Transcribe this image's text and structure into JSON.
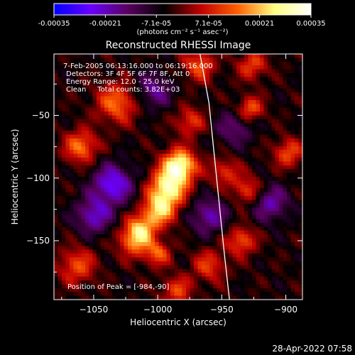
{
  "chart_data": {
    "type": "heatmap",
    "title": "Reconstructed RHESSI Image",
    "colorbar": {
      "min": -0.00035,
      "max": 0.00035,
      "tick_values": [
        -0.00035,
        -0.00021,
        -7.1e-05,
        7.1e-05,
        0.00021,
        0.00035
      ],
      "tick_labels": [
        "-0.00035",
        "-0.00021",
        "-7.1e-05",
        "7.1e-05",
        "0.00021",
        "0.00035"
      ],
      "unit_label": "(photons cm⁻² s⁻¹ asec⁻²)",
      "colors": [
        "#0000ff",
        "#6a00ff",
        "#5a0060",
        "#000000",
        "#c00000",
        "#ff6000",
        "#ffff80",
        "#ffffff"
      ]
    },
    "xlabel": "Heliocentric X (arcsec)",
    "ylabel": "Heliocentric Y (arcsec)",
    "xlim": [
      -1081,
      -887
    ],
    "ylim": [
      -197,
      -1
    ],
    "x_ticks": [
      -1050,
      -1000,
      -950,
      -900
    ],
    "x_tick_labels": [
      "−1050",
      "−1000",
      "−950",
      "−900"
    ],
    "y_ticks": [
      -50,
      -100,
      -150
    ],
    "y_tick_labels": [
      "−50",
      "−100",
      "−150"
    ],
    "info_lines": [
      "7-Feb-2005 06:13:16.000 to 06:19:16.000",
      "Detectors: 3F 4F 5F 6F 7F 8F, Att 0",
      "Energy Range: 12.0 - 25.0 keV",
      "Clean     Total counts: 3.82E+03"
    ],
    "peak_label": "Position of Peak = [-984,-90]",
    "peak_position": [
      -984,
      -90
    ],
    "limb_points": [
      [
        -967,
        -1
      ],
      [
        -960,
        -40
      ],
      [
        -956,
        -80
      ],
      [
        -952,
        -120
      ],
      [
        -948,
        -160
      ],
      [
        -944,
        -197
      ]
    ],
    "sources": [
      {
        "x": -983,
        "y": -90,
        "amp": 0.00034,
        "r": 9
      },
      {
        "x": -992,
        "y": -108,
        "amp": 0.0003,
        "r": 10
      },
      {
        "x": -999,
        "y": -126,
        "amp": 0.00024,
        "r": 9
      },
      {
        "x": -1013,
        "y": -140,
        "amp": 0.00018,
        "r": 8
      },
      {
        "x": -1060,
        "y": -75,
        "amp": 0.0002,
        "r": 9
      },
      {
        "x": -1063,
        "y": -170,
        "amp": 0.00016,
        "r": 10
      },
      {
        "x": -1032,
        "y": -40,
        "amp": 0.00019,
        "r": 11
      },
      {
        "x": -1018,
        "y": -150,
        "amp": 0.0002,
        "r": 9
      },
      {
        "x": -975,
        "y": -55,
        "amp": 0.00014,
        "r": 8
      },
      {
        "x": -968,
        "y": -10,
        "amp": 0.00016,
        "r": 9
      },
      {
        "x": -926,
        "y": -10,
        "amp": 0.00015,
        "r": 8
      },
      {
        "x": -928,
        "y": -45,
        "amp": 0.00018,
        "r": 7
      },
      {
        "x": -930,
        "y": -110,
        "amp": 0.00015,
        "r": 8
      },
      {
        "x": -935,
        "y": -150,
        "amp": 0.00017,
        "r": 8
      },
      {
        "x": -898,
        "y": -80,
        "amp": 0.00016,
        "r": 8
      },
      {
        "x": -960,
        "y": -170,
        "amp": 0.00014,
        "r": 9
      },
      {
        "x": -985,
        "y": -190,
        "amp": 0.00015,
        "r": 8
      },
      {
        "x": -1000,
        "y": -160,
        "amp": 0.00017,
        "r": 7
      },
      {
        "x": -948,
        "y": -95,
        "amp": 0.00013,
        "r": 8
      },
      {
        "x": -1035,
        "y": -105,
        "amp": -0.00022,
        "r": 11
      },
      {
        "x": -1050,
        "y": -130,
        "amp": -0.00018,
        "r": 10
      },
      {
        "x": -960,
        "y": -130,
        "amp": -0.00016,
        "r": 10
      },
      {
        "x": -912,
        "y": -120,
        "amp": -0.00016,
        "r": 10
      },
      {
        "x": -1003,
        "y": -30,
        "amp": -0.00014,
        "r": 10
      },
      {
        "x": -940,
        "y": -60,
        "amp": -0.00012,
        "r": 10
      }
    ]
  },
  "footer": {
    "timestamp": "28-Apr-2022 07:58"
  }
}
